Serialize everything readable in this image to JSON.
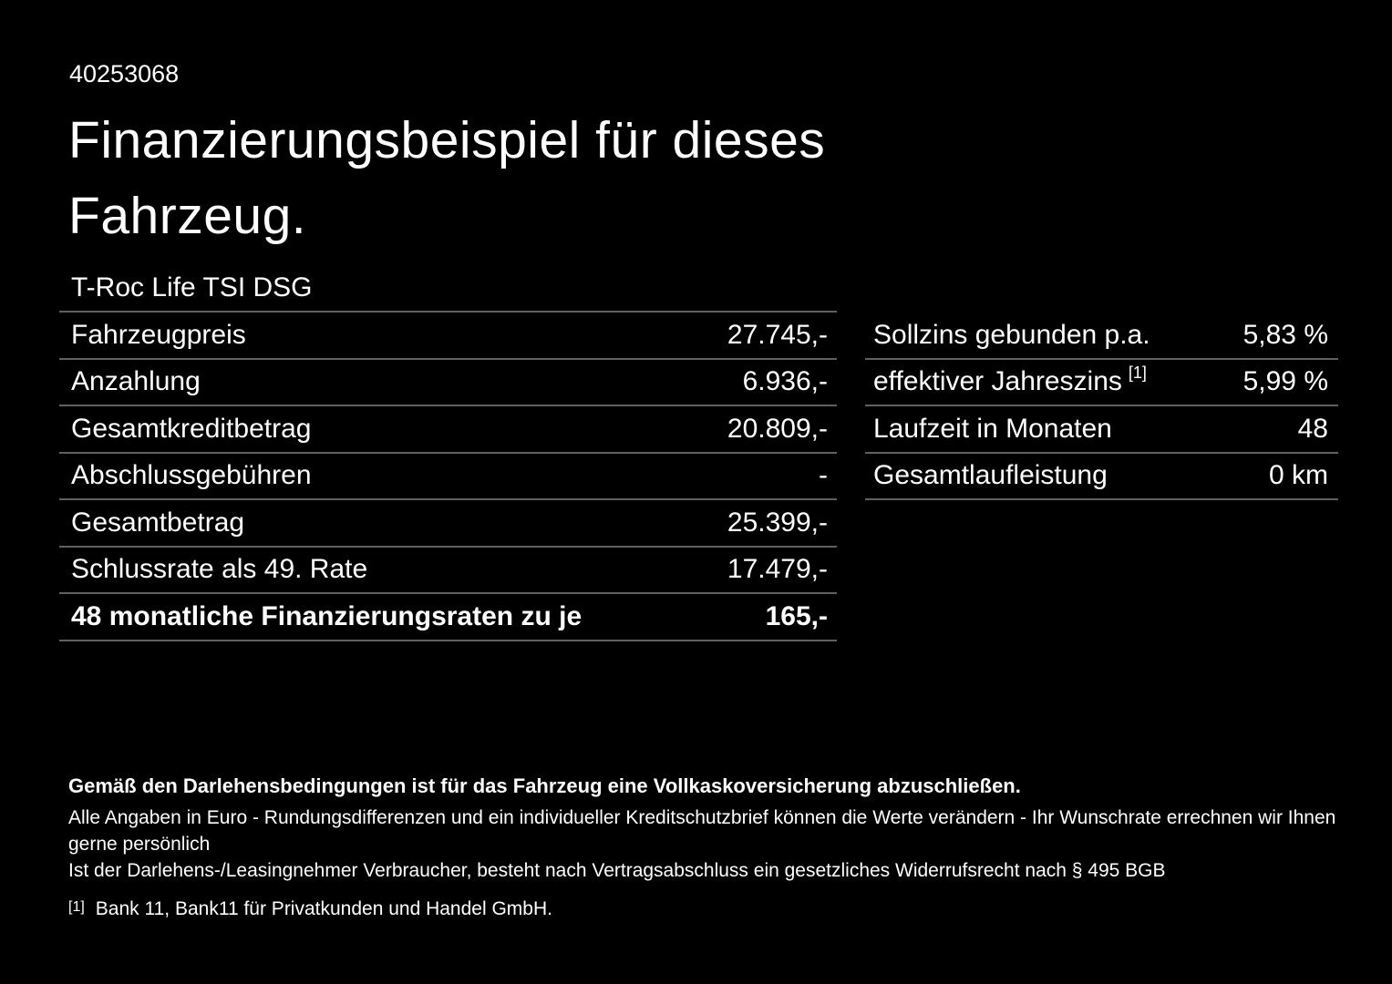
{
  "page": {
    "background_color": "#000000",
    "text_color": "#ffffff",
    "divider_color": "#606060"
  },
  "header": {
    "document_id": "40253068",
    "title_line1": "Finanzierungsbeispiel für dieses",
    "title_line2": "Fahrzeug.",
    "vehicle_name": "T-Roc Life TSI DSG"
  },
  "financing_table": {
    "rows": [
      {
        "label": "Fahrzeugpreis",
        "value": "27.745,-"
      },
      {
        "label": "Anzahlung",
        "value": "6.936,-"
      },
      {
        "label": "Gesamtkreditbetrag",
        "value": "20.809,-"
      },
      {
        "label": "Abschlussgebühren",
        "value": "-"
      },
      {
        "label": "Gesamtbetrag",
        "value": "25.399,-"
      },
      {
        "label": "Schlussrate als 49. Rate",
        "value": "17.479,-"
      },
      {
        "label": "48 monatliche Finanzierungsraten zu je",
        "value": "165,-"
      }
    ]
  },
  "conditions_table": {
    "rows": [
      {
        "label": "Sollzins gebunden p.a.",
        "value": "5,83 %"
      },
      {
        "label": "effektiver Jahreszins",
        "footnote_ref": "[1]",
        "value": "5,99 %"
      },
      {
        "label": "Laufzeit in Monaten",
        "value": "48"
      },
      {
        "label": "Gesamtlaufleistung",
        "value": "0 km"
      }
    ]
  },
  "footer": {
    "insurance_note": "Gemäß den Darlehensbedingungen ist für das Fahrzeug eine Vollkaskoversicherung abzuschließen.",
    "note_line_1": "Alle Angaben in Euro - Rundungsdifferenzen und ein individueller Kreditschutzbrief können die Werte verändern - Ihr Wunschrate errechnen wir Ihnen gerne persönlich",
    "note_line_2": "Ist der Darlehens-/Leasingnehmer Verbraucher, besteht nach Vertragsabschluss ein gesetzliches Widerrufsrecht nach § 495 BGB",
    "footnote_marker": "[1]",
    "footnote_text": "Bank 11, Bank11 für Privatkunden und Handel GmbH."
  }
}
